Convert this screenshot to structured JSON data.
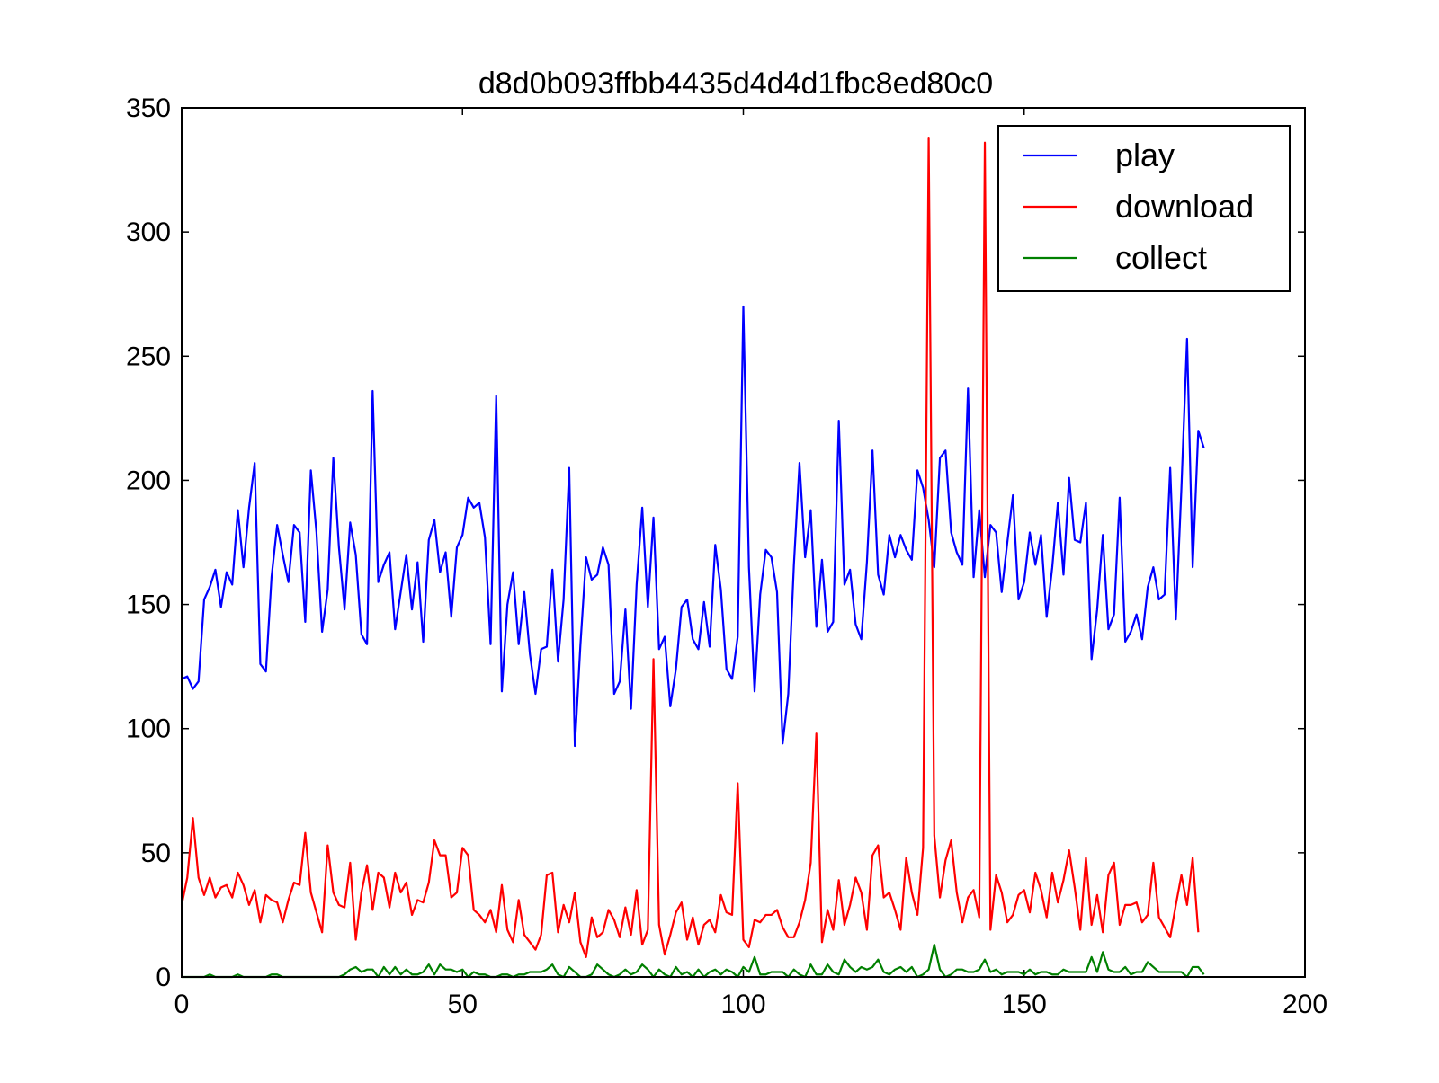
{
  "chart_data": {
    "type": "line",
    "title": "d8d0b093ffbb4435d4d4d1fbc8ed80c0",
    "xlabel": "",
    "ylabel": "",
    "xlim": [
      0,
      200
    ],
    "ylim": [
      0,
      350
    ],
    "xticks": [
      "0",
      "50",
      "100",
      "150",
      "200"
    ],
    "yticks": [
      "0",
      "50",
      "100",
      "150",
      "200",
      "250",
      "300",
      "350"
    ],
    "grid": false,
    "legend_position": "top-right",
    "x_start": 0,
    "series": [
      {
        "name": "play",
        "color": "#0000ff",
        "values": [
          120,
          121,
          116,
          119,
          152,
          157,
          164,
          149,
          163,
          158,
          188,
          165,
          189,
          207,
          126,
          123,
          161,
          182,
          170,
          159,
          182,
          179,
          143,
          204,
          179,
          139,
          156,
          209,
          173,
          148,
          183,
          170,
          138,
          134,
          236,
          159,
          166,
          171,
          140,
          155,
          170,
          148,
          167,
          135,
          176,
          184,
          163,
          171,
          145,
          173,
          178,
          193,
          189,
          191,
          177,
          134,
          234,
          115,
          150,
          163,
          134,
          155,
          130,
          114,
          132,
          133,
          164,
          127,
          152,
          205,
          93,
          134,
          169,
          160,
          162,
          173,
          166,
          114,
          119,
          148,
          108,
          158,
          189,
          149,
          185,
          132,
          137,
          109,
          124,
          149,
          152,
          136,
          132,
          151,
          133,
          174,
          156,
          124,
          120,
          137,
          270,
          165,
          115,
          154,
          172,
          169,
          155,
          94,
          114,
          166,
          207,
          169,
          188,
          141,
          168,
          139,
          143,
          224,
          158,
          164,
          142,
          136,
          167,
          212,
          162,
          154,
          178,
          169,
          178,
          172,
          168,
          204,
          197,
          184,
          165,
          209,
          212,
          179,
          171,
          166,
          237,
          161,
          188,
          161,
          182,
          179,
          155,
          175,
          194,
          152,
          159,
          179,
          166,
          178,
          145,
          165,
          191,
          162,
          201,
          176,
          175,
          191,
          128,
          148,
          178,
          140,
          146,
          193,
          135,
          139,
          146,
          136,
          157,
          165,
          152,
          154,
          205,
          144,
          197,
          257,
          165,
          220,
          213
        ]
      },
      {
        "name": "download",
        "color": "#ff0000",
        "values": [
          29,
          40,
          64,
          40,
          33,
          40,
          32,
          36,
          37,
          32,
          42,
          37,
          29,
          35,
          22,
          33,
          31,
          30,
          22,
          31,
          38,
          37,
          58,
          34,
          26,
          18,
          53,
          34,
          29,
          28,
          46,
          15,
          34,
          45,
          27,
          42,
          40,
          28,
          42,
          34,
          38,
          25,
          31,
          30,
          38,
          55,
          49,
          49,
          32,
          34,
          52,
          49,
          27,
          25,
          22,
          27,
          18,
          37,
          19,
          14,
          31,
          17,
          14,
          11,
          17,
          41,
          42,
          18,
          29,
          22,
          34,
          14,
          8,
          24,
          16,
          18,
          27,
          23,
          16,
          28,
          17,
          35,
          13,
          19,
          128,
          21,
          9,
          17,
          26,
          30,
          15,
          24,
          13,
          21,
          23,
          18,
          33,
          26,
          25,
          78,
          15,
          12,
          23,
          22,
          25,
          25,
          27,
          20,
          16,
          16,
          22,
          31,
          46,
          98,
          14,
          27,
          19,
          39,
          21,
          29,
          40,
          34,
          19,
          49,
          53,
          32,
          34,
          27,
          19,
          48,
          34,
          25,
          52,
          338,
          57,
          32,
          47,
          55,
          34,
          22,
          32,
          35,
          24,
          336,
          19,
          41,
          34,
          22,
          25,
          33,
          35,
          26,
          42,
          35,
          24,
          42,
          30,
          39,
          51,
          36,
          19,
          48,
          21,
          33,
          18,
          41,
          46,
          21,
          29,
          29,
          30,
          22,
          25,
          46,
          24,
          20,
          16,
          29,
          41,
          29,
          48,
          18
        ]
      },
      {
        "name": "collect",
        "color": "#008000",
        "values": [
          0,
          0,
          0,
          0,
          0,
          1,
          0,
          0,
          0,
          0,
          1,
          0,
          0,
          0,
          0,
          0,
          1,
          1,
          0,
          0,
          0,
          0,
          0,
          0,
          0,
          0,
          0,
          0,
          0,
          1,
          3,
          4,
          2,
          3,
          3,
          0,
          4,
          1,
          4,
          1,
          3,
          1,
          1,
          2,
          5,
          1,
          5,
          3,
          3,
          2,
          3,
          0,
          2,
          1,
          1,
          0,
          0,
          1,
          1,
          0,
          1,
          1,
          2,
          2,
          2,
          3,
          5,
          1,
          0,
          4,
          2,
          0,
          0,
          1,
          5,
          3,
          1,
          0,
          1,
          3,
          1,
          2,
          5,
          3,
          0,
          3,
          1,
          0,
          4,
          1,
          2,
          0,
          3,
          0,
          2,
          3,
          1,
          3,
          2,
          0,
          4,
          2,
          8,
          1,
          1,
          2,
          2,
          2,
          0,
          3,
          1,
          0,
          5,
          1,
          1,
          5,
          2,
          1,
          7,
          4,
          2,
          4,
          3,
          4,
          7,
          2,
          1,
          3,
          4,
          2,
          4,
          0,
          1,
          3,
          13,
          3,
          0,
          1,
          3,
          3,
          2,
          2,
          3,
          7,
          2,
          3,
          1,
          2,
          2,
          2,
          1,
          3,
          1,
          2,
          2,
          1,
          1,
          3,
          2,
          2,
          2,
          2,
          8,
          2,
          10,
          3,
          2,
          2,
          4,
          1,
          2,
          2,
          6,
          4,
          2,
          2,
          2,
          2,
          2,
          0,
          4,
          4,
          1
        ]
      }
    ]
  }
}
